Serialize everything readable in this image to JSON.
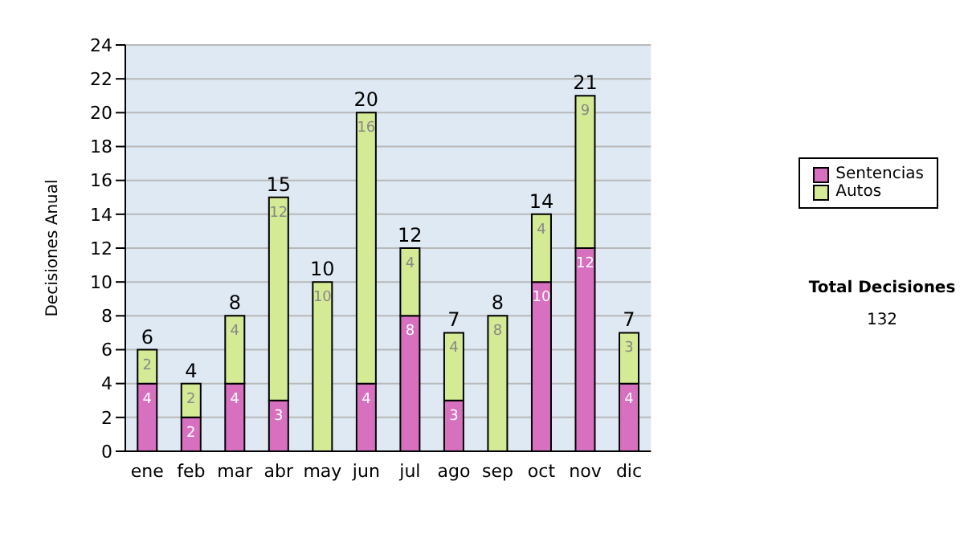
{
  "chart_data": {
    "type": "bar",
    "stacked": true,
    "ylabel": "Decisiones Anual",
    "categories": [
      "ene",
      "feb",
      "mar",
      "abr",
      "may",
      "jun",
      "jul",
      "ago",
      "sep",
      "oct",
      "nov",
      "dic"
    ],
    "series": [
      {
        "name": "Sentencias",
        "color": "#d870c0",
        "values": [
          4,
          2,
          4,
          3,
          0,
          4,
          8,
          3,
          0,
          10,
          12,
          4
        ],
        "value_labels": [
          "4",
          "2",
          "4",
          "3",
          null,
          "4",
          "8",
          "3",
          null,
          "10",
          "12",
          "4"
        ]
      },
      {
        "name": "Autos",
        "color": "#d4ea94",
        "values": [
          2,
          2,
          4,
          12,
          10,
          16,
          4,
          4,
          8,
          4,
          9,
          3
        ],
        "value_labels": [
          "2",
          "2",
          "4",
          "12",
          "10",
          "16",
          "4",
          "4",
          "8",
          "4",
          "9",
          "3"
        ]
      }
    ],
    "totals": [
      "6",
      "4",
      "8",
      "15",
      "10",
      "20",
      "12",
      "7",
      "8",
      "14",
      "21",
      "7"
    ],
    "ylim": [
      0,
      24
    ],
    "yticks": [
      0,
      2,
      4,
      6,
      8,
      10,
      12,
      14,
      16,
      18,
      20,
      22,
      24
    ],
    "grid": "y",
    "legend": "right",
    "annotations": [
      "Total Decisiones",
      "132"
    ]
  }
}
